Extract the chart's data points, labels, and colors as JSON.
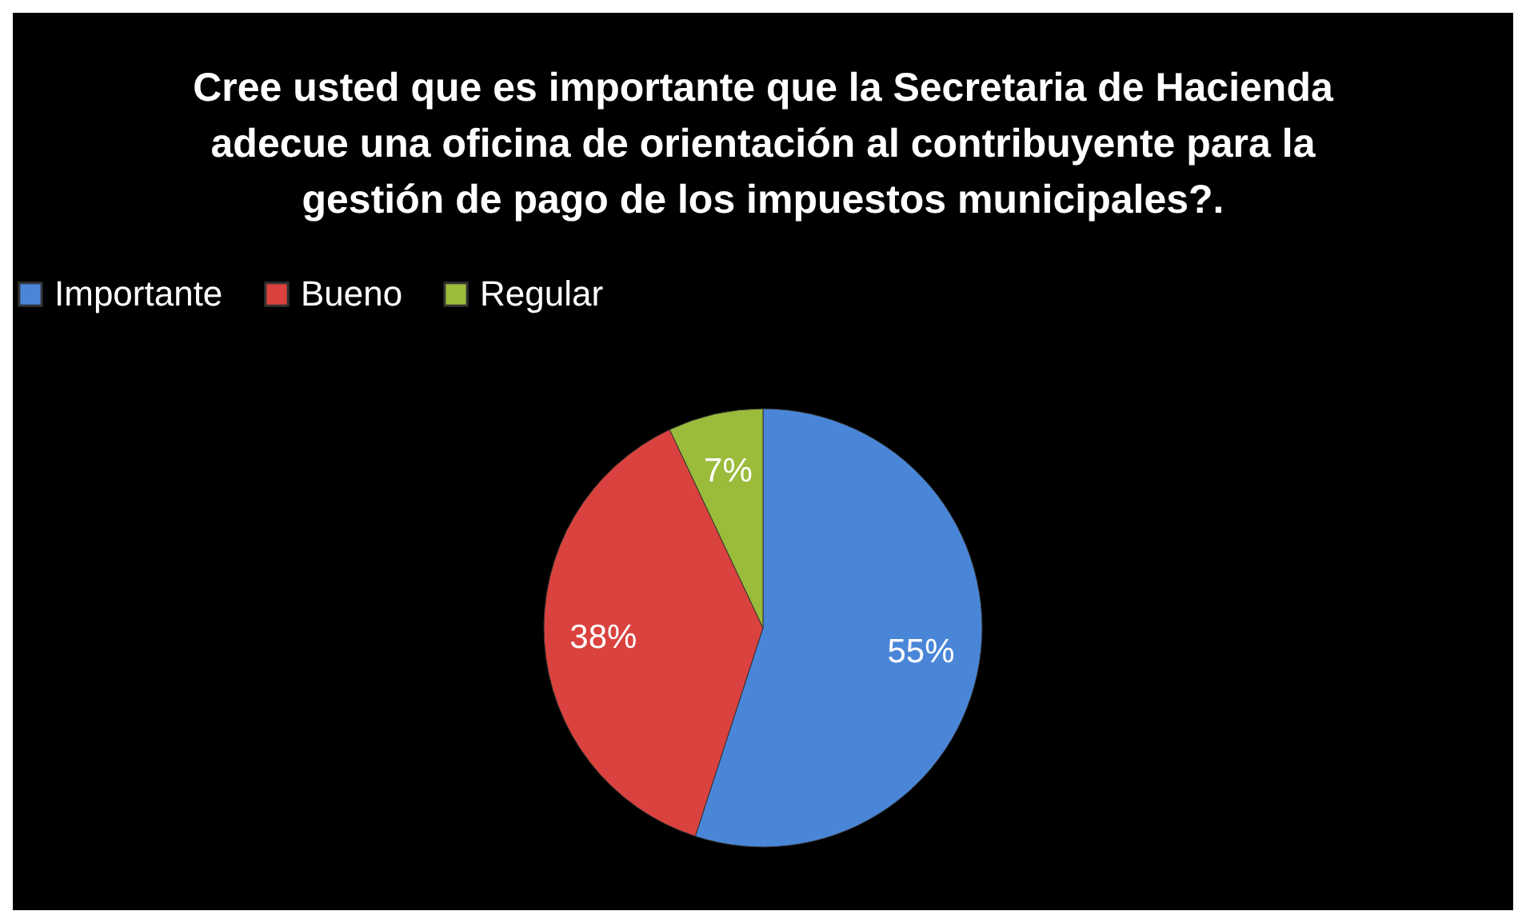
{
  "chart_data": {
    "type": "pie",
    "title": "Cree usted que es importante que la Secretaria de Hacienda adecue una oficina de orientación al contribuyente para la gestión de pago de los impuestos municipales?.",
    "categories": [
      "Importante",
      "Bueno",
      "Regular"
    ],
    "values": [
      55,
      38,
      7
    ],
    "value_labels": [
      "55%",
      "38%",
      "7%"
    ],
    "colors": [
      "#4a86d8",
      "#d9423e",
      "#9bbb3b"
    ],
    "legend": "top"
  }
}
